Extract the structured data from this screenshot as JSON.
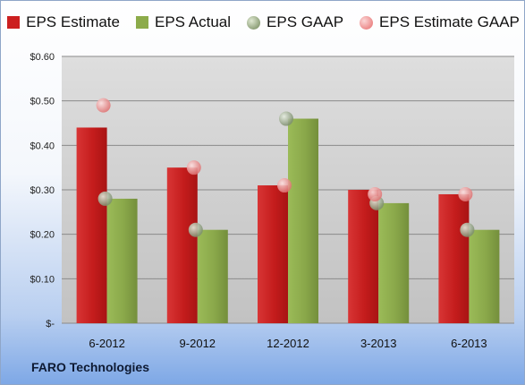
{
  "chart_data": {
    "type": "bar",
    "title": "",
    "xlabel": "",
    "ylabel": "",
    "ylim": [
      0,
      0.6
    ],
    "yticks": [
      0,
      0.1,
      0.2,
      0.3,
      0.4,
      0.5,
      0.6
    ],
    "ytick_labels": [
      "$-",
      "$0.10",
      "$0.20",
      "$0.30",
      "$0.40",
      "$0.50",
      "$0.60"
    ],
    "categories": [
      "6-2012",
      "9-2012",
      "12-2012",
      "3-2013",
      "6-2013"
    ],
    "grid": true,
    "legend_position": "top",
    "series": [
      {
        "name": "EPS Estimate",
        "kind": "bar",
        "color": "#cc1f1f",
        "values": [
          0.44,
          0.35,
          0.31,
          0.3,
          0.29
        ]
      },
      {
        "name": "EPS Actual",
        "kind": "bar",
        "color": "#8cab4a",
        "values": [
          0.28,
          0.21,
          0.46,
          0.27,
          0.21
        ]
      },
      {
        "name": "EPS GAAP",
        "kind": "marker",
        "color": "#8fa17a",
        "values": [
          0.28,
          0.21,
          0.46,
          0.27,
          0.21
        ]
      },
      {
        "name": "EPS Estimate GAAP",
        "kind": "marker",
        "color": "#ec8a8a",
        "values": [
          0.49,
          0.35,
          0.31,
          0.29,
          0.29
        ]
      }
    ]
  },
  "footer": {
    "company": "FARO Technologies"
  }
}
